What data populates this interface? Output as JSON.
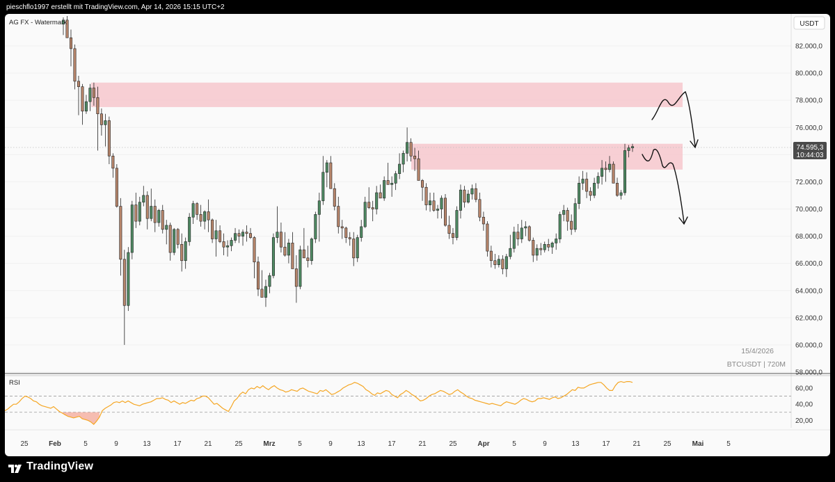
{
  "header": {
    "caption": "pieschflo1997 erstellt mit TradingView.com, Apr 14, 2026 15:15 UTC+2"
  },
  "watermark_label": "AG FX - Watermark",
  "currency_label": "USDT",
  "price_tag": {
    "price": "74.595,3",
    "countdown": "10:44:03"
  },
  "info": {
    "date": "15/4/2026",
    "symbol_interval": "BTCUSDT | 720M"
  },
  "rsi_label": "RSI",
  "footer": {
    "brand": "TradingView"
  },
  "colors": {
    "up_candle": "#4f8a63",
    "down_candle": "#b8866c",
    "zone_fill": "#f6c7cc",
    "rsi_line": "#f5a623",
    "rsi_oversold_fill": "#f28b74",
    "background": "#fafafa"
  },
  "chart_data": [
    {
      "type": "candlestick",
      "symbol": "BTCUSDT",
      "interval": "720M",
      "y_axis": {
        "ticks": [
          "82.000,0",
          "80.000,0",
          "78.000,0",
          "76.000,0",
          "74.000,0",
          "72.000,0",
          "70.000,0",
          "68.000,0",
          "66.000,0",
          "64.000,0",
          "62.000,0",
          "60.000,0",
          "58.000,0"
        ],
        "tick_values": [
          82000,
          80000,
          78000,
          76000,
          74000,
          72000,
          70000,
          68000,
          66000,
          64000,
          62000,
          60000,
          58000
        ],
        "range": [
          58000,
          83800
        ]
      },
      "x_axis": {
        "ticks": [
          "25",
          "Feb",
          "5",
          "9",
          "13",
          "17",
          "21",
          "25",
          "Mrz",
          "5",
          "9",
          "13",
          "17",
          "21",
          "25",
          "Apr",
          "5",
          "9",
          "13",
          "17",
          "21",
          "25",
          "Mai",
          "5"
        ],
        "bold_ticks": [
          "Feb",
          "Mrz",
          "Apr",
          "Mai"
        ]
      },
      "zones": [
        {
          "name": "upper-resistance",
          "from": 77500,
          "to": 79300
        },
        {
          "name": "lower-resistance",
          "from": 72900,
          "to": 74800
        }
      ],
      "last_price": 74595.3,
      "candles_ohlc": [
        [
          83600,
          84100,
          82800,
          83900
        ],
        [
          83900,
          84200,
          83000,
          82600
        ],
        [
          82600,
          83200,
          80500,
          81800
        ],
        [
          81800,
          82100,
          78800,
          79400
        ],
        [
          79400,
          79800,
          76900,
          79000
        ],
        [
          79000,
          79200,
          76200,
          77200
        ],
        [
          77200,
          78400,
          77000,
          77900
        ],
        [
          77900,
          79200,
          77200,
          78900
        ],
        [
          78900,
          79300,
          77600,
          78200
        ],
        [
          78200,
          79000,
          74300,
          77000
        ],
        [
          77000,
          77400,
          75400,
          76200
        ],
        [
          76200,
          77000,
          74600,
          76500
        ],
        [
          76500,
          76800,
          73300,
          73900
        ],
        [
          73900,
          74100,
          72300,
          73000
        ],
        [
          73000,
          73300,
          70100,
          70200
        ],
        [
          70200,
          70800,
          65100,
          66300
        ],
        [
          66300,
          67000,
          60000,
          62900
        ],
        [
          62900,
          67200,
          62500,
          66800
        ],
        [
          66800,
          70600,
          66300,
          70300
        ],
        [
          70300,
          71200,
          68600,
          69100
        ],
        [
          69100,
          70900,
          68800,
          70500
        ],
        [
          70500,
          71700,
          70200,
          71000
        ],
        [
          71000,
          71300,
          68500,
          69300
        ],
        [
          69300,
          71500,
          69100,
          70200
        ],
        [
          70200,
          70700,
          68300,
          69000
        ],
        [
          69000,
          70000,
          68700,
          69900
        ],
        [
          69900,
          70300,
          68200,
          68500
        ],
        [
          68500,
          69200,
          67400,
          68800
        ],
        [
          68800,
          69000,
          66200,
          66800
        ],
        [
          66800,
          68600,
          66600,
          68500
        ],
        [
          68500,
          68600,
          67100,
          67400
        ],
        [
          67400,
          68200,
          65400,
          66200
        ],
        [
          66200,
          67900,
          65600,
          67600
        ],
        [
          67600,
          69700,
          67300,
          69400
        ],
        [
          69400,
          70600,
          68900,
          70400
        ],
        [
          70400,
          70500,
          69200,
          69600
        ],
        [
          69600,
          70300,
          68700,
          69100
        ],
        [
          69100,
          69900,
          68500,
          69800
        ],
        [
          69800,
          70700,
          68300,
          69200
        ],
        [
          69200,
          69300,
          67500,
          67800
        ],
        [
          67800,
          69200,
          66500,
          68400
        ],
        [
          68400,
          68800,
          67500,
          67600
        ],
        [
          67600,
          68200,
          66600,
          67200
        ],
        [
          67200,
          67700,
          66500,
          67300
        ],
        [
          67300,
          67900,
          66900,
          67700
        ],
        [
          67700,
          68600,
          67500,
          68200
        ],
        [
          68200,
          68500,
          67500,
          68000
        ],
        [
          68000,
          68500,
          67300,
          68300
        ],
        [
          68300,
          68800,
          67600,
          68200
        ],
        [
          68200,
          68600,
          67800,
          67900
        ],
        [
          67900,
          68000,
          64900,
          66100
        ],
        [
          66100,
          66500,
          63600,
          64100
        ],
        [
          64100,
          65500,
          63700,
          63500
        ],
        [
          63500,
          64800,
          62800,
          64300
        ],
        [
          64300,
          65300,
          63800,
          65100
        ],
        [
          65100,
          68200,
          64900,
          67900
        ],
        [
          67900,
          70200,
          67500,
          68300
        ],
        [
          68300,
          69000,
          66800,
          67200
        ],
        [
          67200,
          68300,
          66500,
          66600
        ],
        [
          66600,
          67800,
          66000,
          67500
        ],
        [
          67500,
          68300,
          66300,
          65600
        ],
        [
          65600,
          66600,
          63100,
          64300
        ],
        [
          64300,
          67300,
          64100,
          67000
        ],
        [
          67000,
          68600,
          66700,
          66400
        ],
        [
          66400,
          67300,
          65700,
          66200
        ],
        [
          66200,
          67900,
          65900,
          67800
        ],
        [
          67800,
          69800,
          67500,
          69600
        ],
        [
          69600,
          71200,
          67600,
          70600
        ],
        [
          70600,
          73900,
          70300,
          72700
        ],
        [
          72700,
          73600,
          71600,
          73400
        ],
        [
          73400,
          73900,
          72800,
          71500
        ],
        [
          71500,
          71900,
          69900,
          70200
        ],
        [
          70200,
          70900,
          68200,
          68700
        ],
        [
          68700,
          69200,
          67800,
          68600
        ],
        [
          68600,
          68700,
          67500,
          67900
        ],
        [
          67900,
          68300,
          67300,
          67800
        ],
        [
          67800,
          68300,
          65800,
          66400
        ],
        [
          66400,
          68100,
          66100,
          67900
        ],
        [
          67900,
          69200,
          67600,
          68700
        ],
        [
          68700,
          70900,
          68600,
          70500
        ],
        [
          70500,
          71600,
          70000,
          70100
        ],
        [
          70100,
          70600,
          69100,
          70000
        ],
        [
          70000,
          71700,
          69600,
          71200
        ],
        [
          71200,
          71800,
          70900,
          70800
        ],
        [
          70800,
          72400,
          70600,
          72100
        ],
        [
          72100,
          73400,
          71800,
          71800
        ],
        [
          71800,
          72400,
          70900,
          71900
        ],
        [
          71900,
          72800,
          71400,
          72600
        ],
        [
          72600,
          74100,
          72200,
          73300
        ],
        [
          73300,
          74300,
          72700,
          74100
        ],
        [
          74100,
          76000,
          73500,
          74900
        ],
        [
          74900,
          75200,
          73500,
          73900
        ],
        [
          73900,
          74500,
          72800,
          73700
        ],
        [
          73700,
          74300,
          72100,
          72100
        ],
        [
          72100,
          72200,
          70600,
          71600
        ],
        [
          71600,
          71900,
          69900,
          70300
        ],
        [
          70300,
          71200,
          69800,
          70600
        ],
        [
          70600,
          71200,
          69800,
          69900
        ],
        [
          69900,
          70300,
          69300,
          70000
        ],
        [
          70000,
          71000,
          69300,
          70800
        ],
        [
          70800,
          71100,
          68700,
          68800
        ],
        [
          68800,
          69500,
          67800,
          68200
        ],
        [
          68200,
          68600,
          67400,
          67900
        ],
        [
          67900,
          70200,
          67700,
          69900
        ],
        [
          69900,
          71800,
          69300,
          71400
        ],
        [
          71400,
          71700,
          70100,
          70500
        ],
        [
          70500,
          71400,
          70400,
          71100
        ],
        [
          71100,
          71800,
          70700,
          71500
        ],
        [
          71500,
          71900,
          70500,
          70700
        ],
        [
          70700,
          71200,
          69100,
          69400
        ],
        [
          69400,
          69800,
          68400,
          68900
        ],
        [
          68900,
          69100,
          66500,
          66900
        ],
        [
          66900,
          67300,
          65700,
          66200
        ],
        [
          66200,
          66700,
          65600,
          65900
        ],
        [
          65900,
          66600,
          65700,
          66300
        ],
        [
          66300,
          66600,
          65200,
          65600
        ],
        [
          65600,
          66700,
          65000,
          66500
        ],
        [
          66500,
          68100,
          66300,
          67100
        ],
        [
          67100,
          68700,
          66800,
          68300
        ],
        [
          68300,
          68900,
          67300,
          67800
        ],
        [
          67800,
          69200,
          67500,
          68600
        ],
        [
          68600,
          69100,
          68000,
          68700
        ],
        [
          68700,
          68800,
          67600,
          67700
        ],
        [
          67700,
          67900,
          66100,
          66600
        ],
        [
          66600,
          67400,
          66200,
          67100
        ],
        [
          67100,
          67500,
          66600,
          67000
        ],
        [
          67000,
          67600,
          66800,
          67400
        ],
        [
          67400,
          67800,
          66900,
          67200
        ],
        [
          67200,
          67600,
          66700,
          67500
        ],
        [
          67500,
          68200,
          67000,
          67800
        ],
        [
          67800,
          69800,
          67500,
          69600
        ],
        [
          69600,
          70300,
          69100,
          69900
        ],
        [
          69900,
          70100,
          68400,
          69100
        ],
        [
          69100,
          69600,
          68100,
          68500
        ],
        [
          68500,
          70800,
          68300,
          70400
        ],
        [
          70400,
          72400,
          70000,
          71900
        ],
        [
          71900,
          72800,
          71400,
          72200
        ],
        [
          72200,
          72700,
          70800,
          71300
        ],
        [
          71300,
          71600,
          70600,
          71000
        ],
        [
          71000,
          72300,
          70800,
          71900
        ],
        [
          71900,
          72700,
          71500,
          72400
        ],
        [
          72400,
          73600,
          71800,
          73000
        ],
        [
          73000,
          73500,
          72000,
          72900
        ],
        [
          72900,
          73900,
          72700,
          73300
        ],
        [
          73300,
          73500,
          71900,
          71900
        ],
        [
          71900,
          72300,
          70900,
          71000
        ],
        [
          71000,
          71400,
          70700,
          71200
        ],
        [
          71200,
          74800,
          71000,
          74300
        ],
        [
          74300,
          74700,
          73800,
          74500
        ],
        [
          74500,
          74800,
          74200,
          74595
        ]
      ]
    },
    {
      "type": "line",
      "name": "RSI",
      "y_axis": {
        "ticks": [
          "60,00",
          "40,00",
          "20,00"
        ],
        "tick_values": [
          60,
          40,
          20
        ],
        "range": [
          10,
          72
        ]
      },
      "levels": [
        50,
        30
      ],
      "values": [
        32,
        34,
        37,
        40,
        40,
        43,
        47,
        50,
        49,
        47,
        44,
        43,
        40,
        38,
        37,
        36,
        35,
        37,
        34,
        31,
        29,
        27,
        25,
        24,
        23,
        24,
        25,
        22,
        21,
        20,
        18,
        15,
        19,
        24,
        32,
        35,
        37,
        39,
        42,
        43,
        42,
        44,
        42,
        44,
        42,
        40,
        39,
        38,
        40,
        41,
        42,
        43,
        45,
        47,
        47,
        48,
        46,
        45,
        42,
        44,
        42,
        40,
        42,
        41,
        43,
        45,
        44,
        47,
        48,
        50,
        50,
        48,
        44,
        40,
        41,
        38,
        35,
        33,
        31,
        37,
        44,
        47,
        52,
        55,
        53,
        58,
        60,
        59,
        62,
        60,
        63,
        60,
        58,
        61,
        63,
        60,
        58,
        57,
        55,
        56,
        58,
        57,
        56,
        59,
        60,
        58,
        56,
        55,
        54,
        53,
        57,
        56,
        58,
        55,
        52,
        53,
        55,
        57,
        60,
        62,
        64,
        65,
        67,
        66,
        64,
        62,
        58,
        56,
        53,
        51,
        54,
        53,
        55,
        57,
        56,
        52,
        50,
        48,
        52,
        54,
        57,
        55,
        52,
        50,
        47,
        44,
        45,
        47,
        50,
        52,
        53,
        55,
        57,
        56,
        54,
        52,
        53,
        56,
        58,
        55,
        53,
        50,
        48,
        47,
        45,
        44,
        43,
        42,
        41,
        40,
        41,
        40,
        39,
        38,
        41,
        43,
        42,
        41,
        40,
        42,
        45,
        47,
        46,
        44,
        43,
        44,
        47,
        47,
        48,
        47,
        46,
        48,
        49,
        47,
        48,
        50,
        52,
        55,
        58,
        57,
        61,
        60,
        60,
        62,
        64,
        65,
        66,
        67,
        67,
        64,
        60,
        57,
        57,
        63,
        67,
        68,
        67,
        68,
        68,
        67
      ]
    }
  ]
}
